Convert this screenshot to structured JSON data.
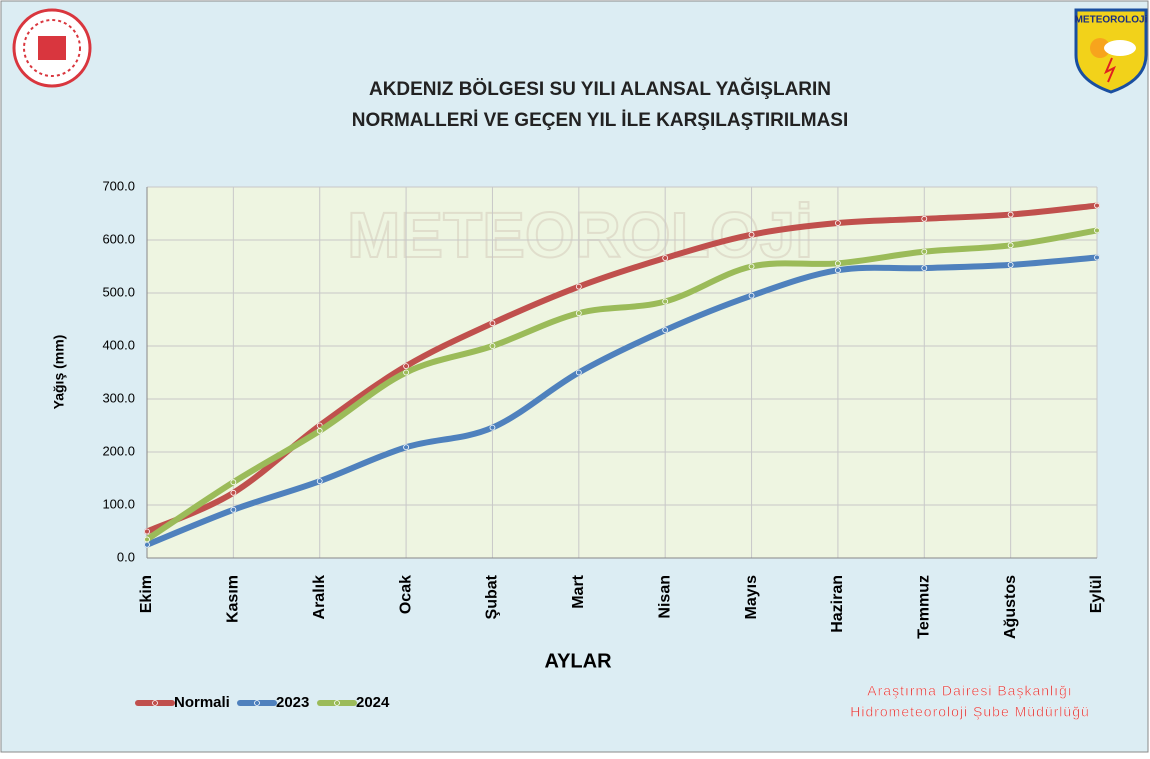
{
  "header": {
    "logo_text": "METEOROLOJi",
    "watermark": "METEOROLOJİ"
  },
  "chart_data": {
    "type": "line",
    "title": [
      "AKDENIZ BÖLGESI  SU YILI ALANSAL YAĞIŞLARIN",
      "NORMALLERİ VE GEÇEN YIL İLE KARŞILAŞTIRILMASI"
    ],
    "y_label": "Yağış (mm)",
    "x_label": "AYLAR",
    "categories": [
      "Ekim",
      "Kasım",
      "Aralık",
      "Ocak",
      "Şubat",
      "Mart",
      "Nisan",
      "Mayıs",
      "Haziran",
      "Temmuz",
      "Ağustos",
      "Eylül"
    ],
    "series": [
      {
        "name": "Normali",
        "color": "#c0504d",
        "values": [
          50,
          123,
          250,
          362,
          443,
          512,
          566,
          610,
          632,
          640,
          648,
          665
        ]
      },
      {
        "name": "2023",
        "color": "#4f81bd",
        "values": [
          25,
          91,
          145,
          209,
          246,
          350,
          430,
          495,
          543,
          547,
          553,
          567
        ]
      },
      {
        "name": "2024",
        "color": "#9bbb59",
        "values": [
          35,
          143,
          240,
          350,
          400,
          462,
          484,
          550,
          556,
          578,
          590,
          618
        ]
      }
    ],
    "ylim": [
      0,
      700
    ],
    "yticks": [
      {
        "value": 0,
        "label": "0.0"
      },
      {
        "value": 100,
        "label": "100.0"
      },
      {
        "value": 200,
        "label": "200.0"
      },
      {
        "value": 300,
        "label": "300.0"
      },
      {
        "value": 400,
        "label": "400.0"
      },
      {
        "value": 500,
        "label": "500.0"
      },
      {
        "value": 600,
        "label": "600.0"
      },
      {
        "value": 700,
        "label": "700.0"
      }
    ],
    "grid": true,
    "legend": "bottom-left"
  },
  "footer": {
    "lines": [
      "Araştırma Dairesi Başkanlığı",
      "Hidrometeoroloji Şube Müdürlüğü"
    ]
  }
}
